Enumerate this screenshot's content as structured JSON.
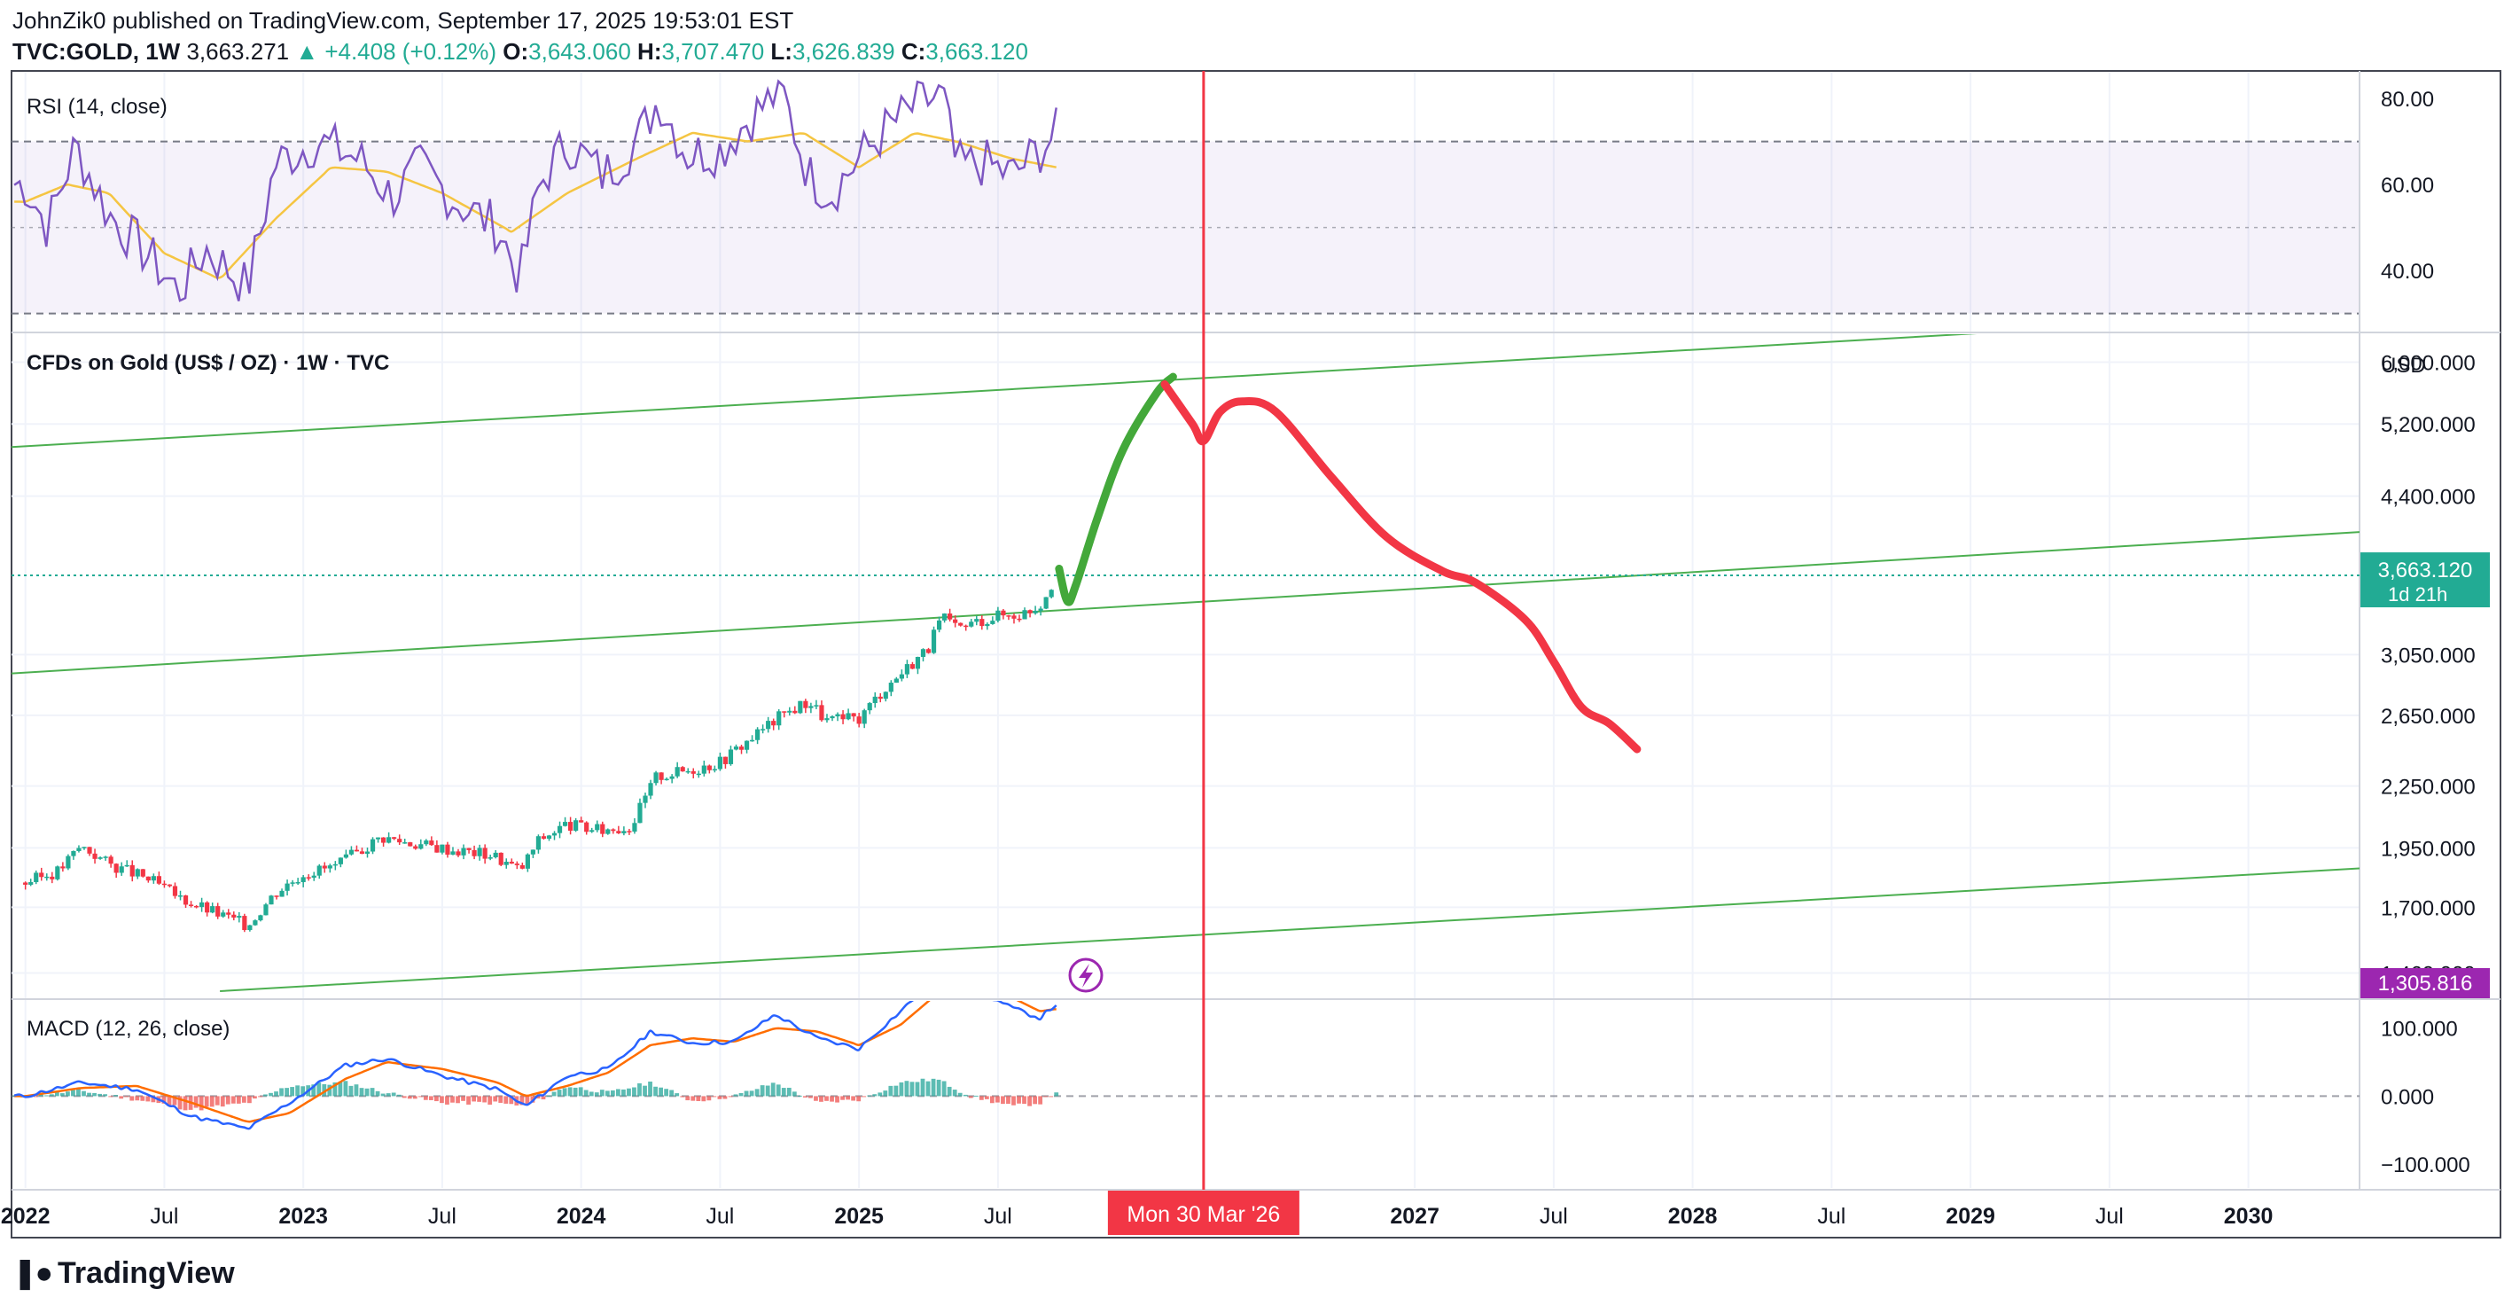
{
  "header": {
    "publish_line": "JohnZik0 published on TradingView.com, September 17, 2025 19:53:01 EST",
    "symbol": "TVC:GOLD, 1W",
    "last": "3,663.271",
    "change": "▲ +4.408 (+0.12%)",
    "o_label": "O:",
    "o_value": "3,643.060",
    "h_label": "H:",
    "h_value": "3,707.470",
    "l_label": "L:",
    "l_value": "3,626.839",
    "c_label": "C:",
    "c_value": "3,663.120"
  },
  "footer": {
    "brand": "TradingView"
  },
  "colors": {
    "up": "#22ab94",
    "down": "#f23645",
    "channel": "#4caf50",
    "arrow_up": "#43a83a",
    "arrow_down": "#f23645",
    "rsi": "#7e57c2",
    "rsi_ma": "#f5c542",
    "macd": "#2962ff",
    "signal": "#ff6d00",
    "badge_purple": "#9c27b0",
    "badge_teal": "#22ab94"
  },
  "chart_data": {
    "type": "candlestick",
    "title": "CFDs on Gold (US$ / OZ) · 1W · TVC",
    "currency": "USD",
    "x_axis": {
      "ticks": [
        "2022",
        "Jul",
        "2023",
        "Jul",
        "2024",
        "Jul",
        "2025",
        "Jul",
        "2027",
        "Jul",
        "2028",
        "Jul",
        "2029",
        "Jul",
        "2030"
      ],
      "ticks_t": [
        2022.0,
        2022.5,
        2023.0,
        2023.5,
        2024.0,
        2024.5,
        2025.0,
        2025.5,
        2027.0,
        2027.5,
        2028.0,
        2028.5,
        2029.0,
        2029.5,
        2030.0
      ],
      "range": [
        2021.95,
        2030.4
      ],
      "cursor_label": "Mon 30 Mar '26",
      "cursor_t": 2026.24
    },
    "price_axis": {
      "scale": "log",
      "ticks": [
        "6,000.000",
        "5,200.000",
        "4,400.000",
        "3,050.000",
        "2,650.000",
        "2,250.000",
        "1,950.000",
        "1,700.000",
        "1,460.000"
      ],
      "tick_values": [
        6000,
        5200,
        4400,
        3050,
        2650,
        2250,
        1950,
        1700,
        1460
      ],
      "range": [
        1380,
        6400
      ],
      "last_price_label": "3,663.120",
      "countdown_label": "1d 21h",
      "last_price": 3663.12,
      "extra_label": "1,305.816"
    },
    "price_anchors": [
      [
        2022.0,
        1800
      ],
      [
        2022.12,
        1850
      ],
      [
        2022.2,
        1960
      ],
      [
        2022.3,
        1880
      ],
      [
        2022.45,
        1810
      ],
      [
        2022.55,
        1740
      ],
      [
        2022.68,
        1680
      ],
      [
        2022.8,
        1630
      ],
      [
        2022.9,
        1760
      ],
      [
        2023.0,
        1840
      ],
      [
        2023.12,
        1870
      ],
      [
        2023.28,
        2000
      ],
      [
        2023.4,
        1970
      ],
      [
        2023.55,
        1940
      ],
      [
        2023.68,
        1920
      ],
      [
        2023.78,
        1850
      ],
      [
        2023.85,
        1990
      ],
      [
        2023.95,
        2060
      ],
      [
        2024.05,
        2030
      ],
      [
        2024.18,
        2050
      ],
      [
        2024.27,
        2300
      ],
      [
        2024.4,
        2340
      ],
      [
        2024.5,
        2380
      ],
      [
        2024.6,
        2500
      ],
      [
        2024.72,
        2650
      ],
      [
        2024.82,
        2740
      ],
      [
        2024.88,
        2620
      ],
      [
        2025.0,
        2630
      ],
      [
        2025.08,
        2800
      ],
      [
        2025.15,
        2920
      ],
      [
        2025.25,
        3100
      ],
      [
        2025.3,
        3330
      ],
      [
        2025.35,
        3230
      ],
      [
        2025.42,
        3290
      ],
      [
        2025.5,
        3340
      ],
      [
        2025.58,
        3350
      ],
      [
        2025.65,
        3420
      ],
      [
        2025.71,
        3663
      ]
    ],
    "channel_lines": [
      {
        "from": [
          2021.95,
          4930
        ],
        "to": [
          2030.4,
          6750
        ]
      },
      {
        "from": [
          2021.95,
          2920
        ],
        "to": [
          2030.4,
          4050
        ]
      },
      {
        "from": [
          2022.7,
          1400
        ],
        "to": [
          2030.4,
          1860
        ]
      }
    ],
    "projection_up": [
      [
        2025.72,
        3720
      ],
      [
        2025.75,
        3450
      ],
      [
        2025.78,
        3580
      ],
      [
        2025.86,
        4200
      ],
      [
        2025.95,
        4900
      ],
      [
        2026.07,
        5580
      ],
      [
        2026.13,
        5800
      ]
    ],
    "projection_down": [
      [
        2026.1,
        5700
      ],
      [
        2026.2,
        5200
      ],
      [
        2026.24,
        5000
      ],
      [
        2026.3,
        5350
      ],
      [
        2026.38,
        5480
      ],
      [
        2026.5,
        5350
      ],
      [
        2026.7,
        4600
      ],
      [
        2026.9,
        4000
      ],
      [
        2027.1,
        3700
      ],
      [
        2027.22,
        3600
      ],
      [
        2027.4,
        3300
      ],
      [
        2027.5,
        3000
      ],
      [
        2027.6,
        2700
      ],
      [
        2027.7,
        2600
      ],
      [
        2027.8,
        2450
      ]
    ],
    "rsi": {
      "label": "RSI (14, close)",
      "ticks": [
        "80.00",
        "60.00",
        "40.00"
      ],
      "tick_values": [
        80,
        60,
        40
      ],
      "band": [
        30,
        70
      ],
      "mid": 50,
      "range": [
        26,
        86
      ],
      "anchors": [
        [
          2022.0,
          60
        ],
        [
          2022.08,
          50
        ],
        [
          2022.18,
          69
        ],
        [
          2022.3,
          53
        ],
        [
          2022.45,
          43
        ],
        [
          2022.55,
          35
        ],
        [
          2022.65,
          45
        ],
        [
          2022.8,
          36
        ],
        [
          2022.9,
          65
        ],
        [
          2023.05,
          70
        ],
        [
          2023.2,
          66
        ],
        [
          2023.32,
          57
        ],
        [
          2023.42,
          64
        ],
        [
          2023.55,
          56
        ],
        [
          2023.7,
          50
        ],
        [
          2023.78,
          38
        ],
        [
          2023.85,
          60
        ],
        [
          2023.95,
          70
        ],
        [
          2024.08,
          62
        ],
        [
          2024.2,
          70
        ],
        [
          2024.28,
          80
        ],
        [
          2024.38,
          67
        ],
        [
          2024.5,
          68
        ],
        [
          2024.6,
          75
        ],
        [
          2024.72,
          82
        ],
        [
          2024.82,
          62
        ],
        [
          2024.9,
          58
        ],
        [
          2025.0,
          66
        ],
        [
          2025.1,
          73
        ],
        [
          2025.2,
          78
        ],
        [
          2025.3,
          81
        ],
        [
          2025.35,
          64
        ],
        [
          2025.45,
          65
        ],
        [
          2025.55,
          62
        ],
        [
          2025.65,
          68
        ],
        [
          2025.71,
          72
        ]
      ],
      "ma_anchors": [
        [
          2022.0,
          56
        ],
        [
          2022.15,
          60
        ],
        [
          2022.3,
          58
        ],
        [
          2022.5,
          44
        ],
        [
          2022.7,
          38
        ],
        [
          2022.9,
          52
        ],
        [
          2023.1,
          64
        ],
        [
          2023.3,
          63
        ],
        [
          2023.5,
          58
        ],
        [
          2023.75,
          49
        ],
        [
          2023.95,
          58
        ],
        [
          2024.2,
          66
        ],
        [
          2024.4,
          72
        ],
        [
          2024.6,
          70
        ],
        [
          2024.8,
          72
        ],
        [
          2025.0,
          64
        ],
        [
          2025.2,
          72
        ],
        [
          2025.35,
          70
        ],
        [
          2025.55,
          66
        ],
        [
          2025.71,
          64
        ]
      ]
    },
    "macd": {
      "label": "MACD (12, 26, close)",
      "ticks": [
        "100.000",
        "0.000",
        "−100.000"
      ],
      "tick_values": [
        100,
        0,
        -100
      ],
      "range": [
        -135,
        140
      ],
      "macd_anchors": [
        [
          2022.0,
          0
        ],
        [
          2022.2,
          20
        ],
        [
          2022.4,
          10
        ],
        [
          2022.6,
          -30
        ],
        [
          2022.8,
          -48
        ],
        [
          2022.95,
          -10
        ],
        [
          2023.15,
          45
        ],
        [
          2023.3,
          55
        ],
        [
          2023.5,
          30
        ],
        [
          2023.7,
          10
        ],
        [
          2023.8,
          -15
        ],
        [
          2023.95,
          30
        ],
        [
          2024.1,
          40
        ],
        [
          2024.25,
          95
        ],
        [
          2024.4,
          78
        ],
        [
          2024.55,
          80
        ],
        [
          2024.7,
          120
        ],
        [
          2024.85,
          85
        ],
        [
          2025.0,
          70
        ],
        [
          2025.15,
          125
        ],
        [
          2025.28,
          175
        ],
        [
          2025.4,
          160
        ],
        [
          2025.55,
          130
        ],
        [
          2025.65,
          115
        ],
        [
          2025.71,
          135
        ]
      ],
      "signal_anchors": [
        [
          2022.0,
          0
        ],
        [
          2022.2,
          12
        ],
        [
          2022.4,
          15
        ],
        [
          2022.6,
          -10
        ],
        [
          2022.8,
          -38
        ],
        [
          2022.95,
          -25
        ],
        [
          2023.15,
          25
        ],
        [
          2023.3,
          50
        ],
        [
          2023.5,
          40
        ],
        [
          2023.7,
          20
        ],
        [
          2023.8,
          0
        ],
        [
          2023.95,
          15
        ],
        [
          2024.1,
          35
        ],
        [
          2024.25,
          75
        ],
        [
          2024.4,
          85
        ],
        [
          2024.55,
          80
        ],
        [
          2024.7,
          100
        ],
        [
          2024.85,
          95
        ],
        [
          2025.0,
          75
        ],
        [
          2025.15,
          105
        ],
        [
          2025.28,
          150
        ],
        [
          2025.4,
          160
        ],
        [
          2025.55,
          145
        ],
        [
          2025.65,
          125
        ],
        [
          2025.71,
          128
        ]
      ]
    }
  }
}
